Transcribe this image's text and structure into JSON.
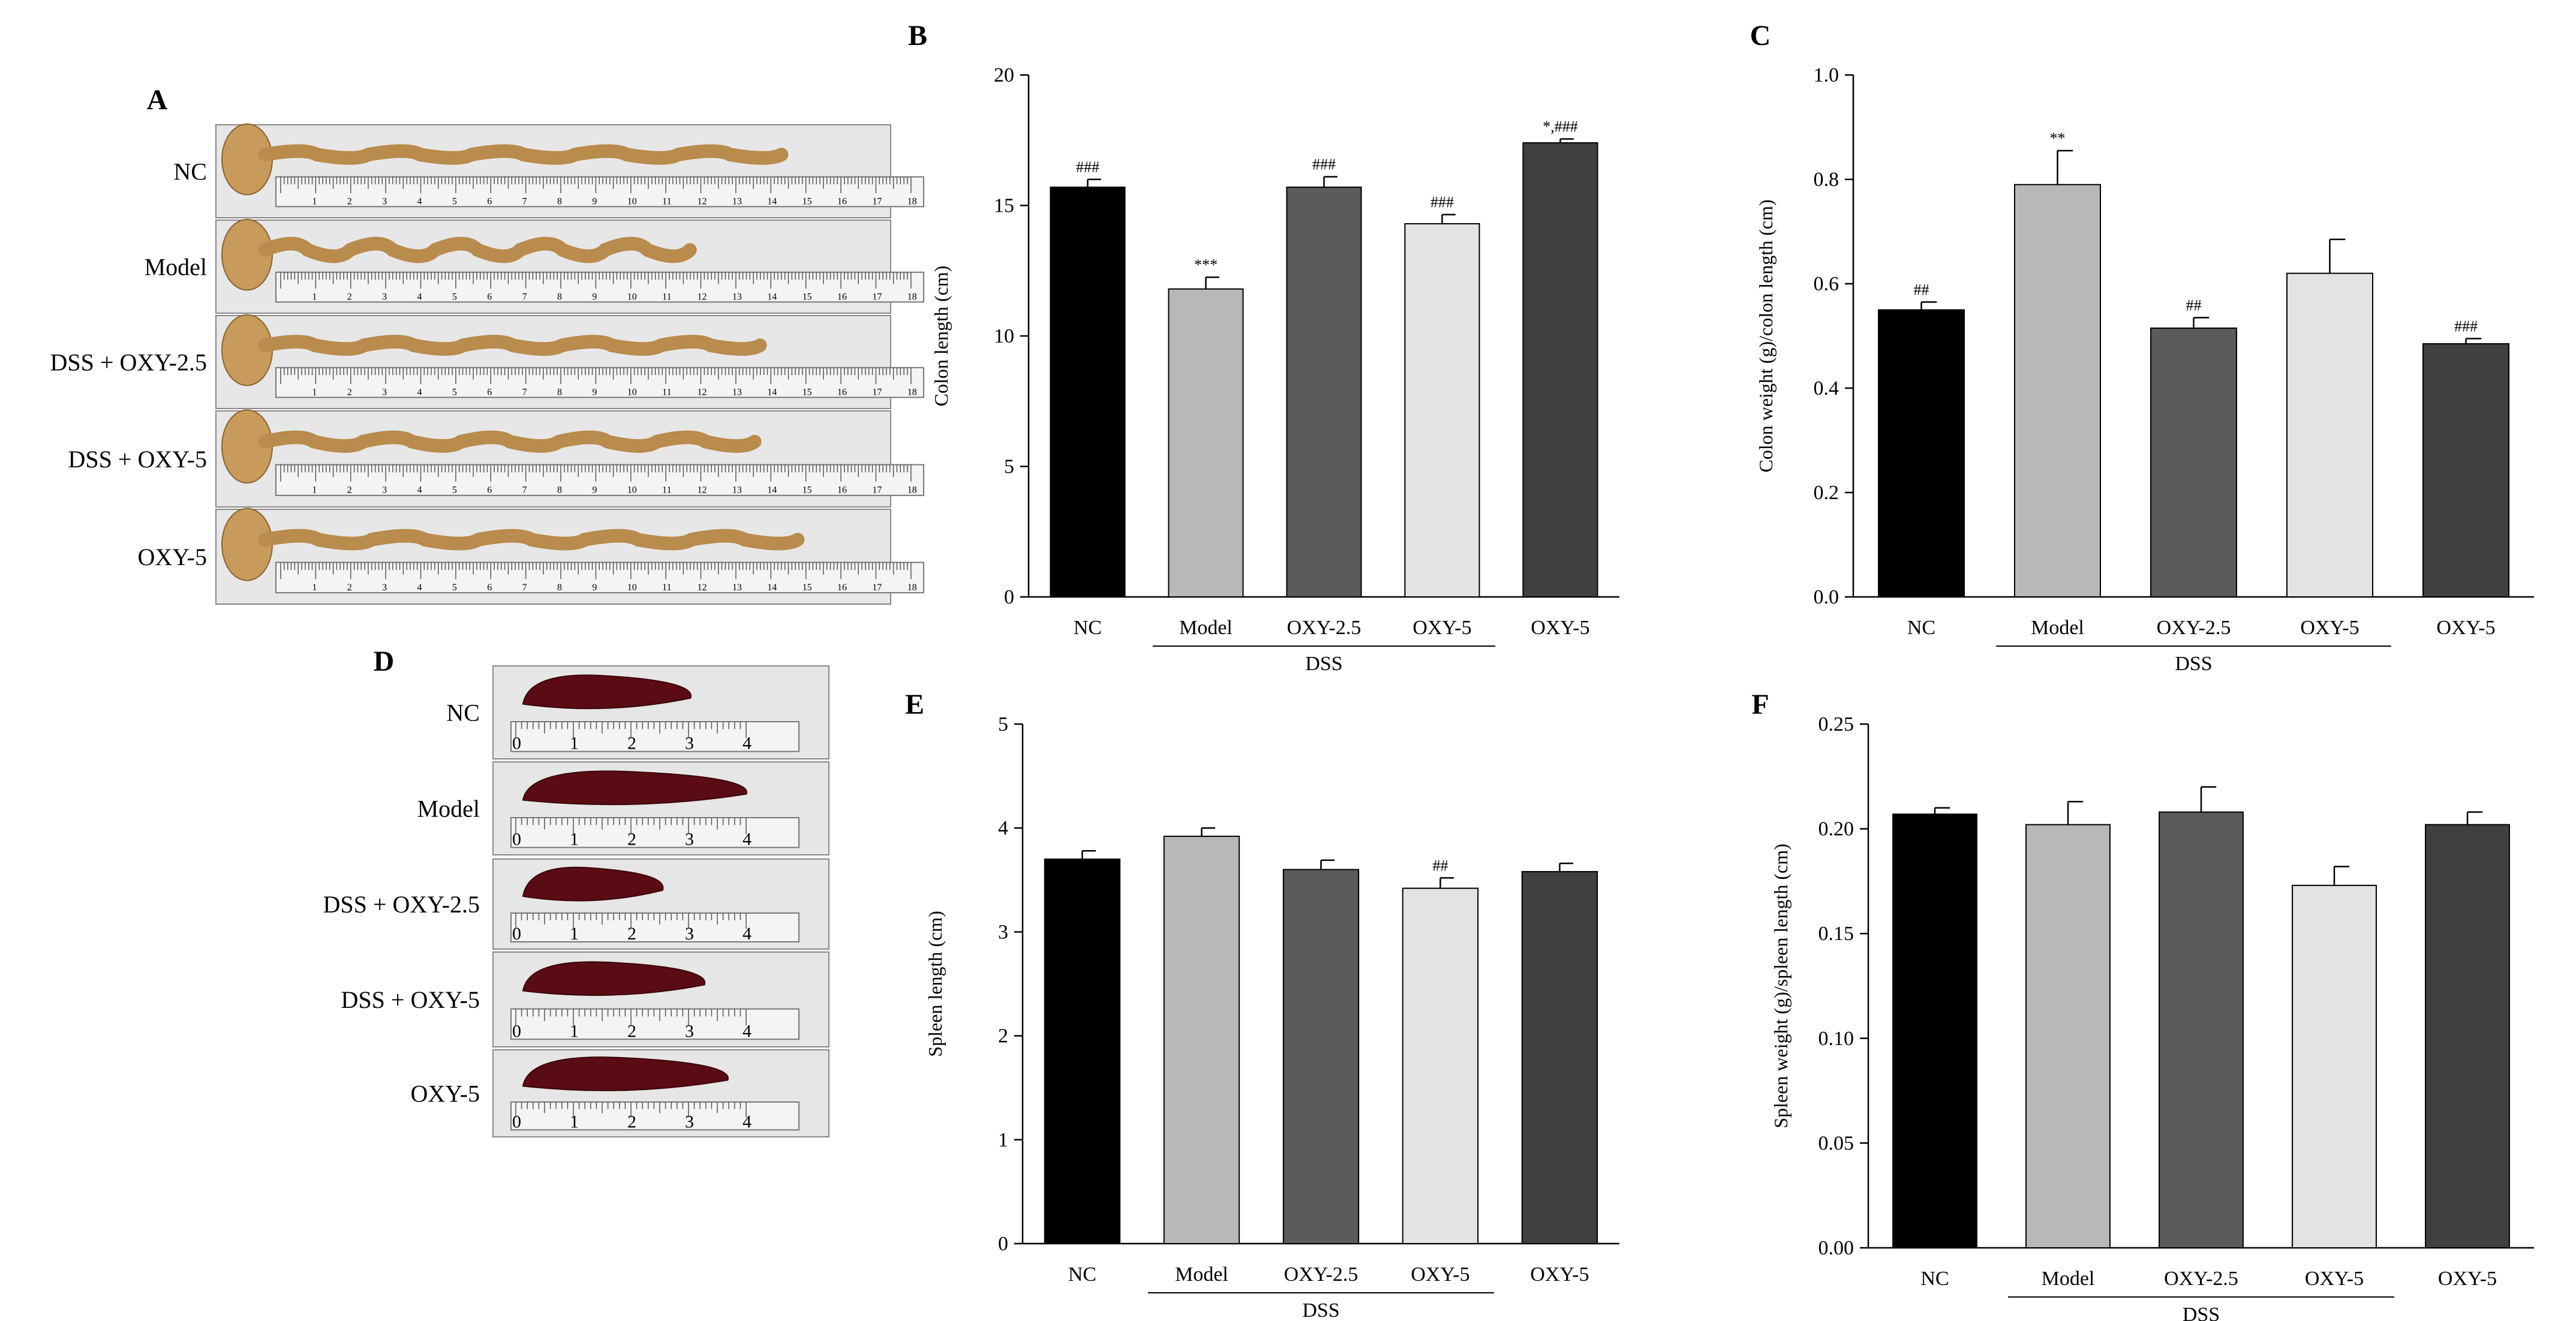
{
  "photo_panels": [
    {
      "letter": "A",
      "subject": "colon",
      "rows": [
        "NC",
        "Model",
        "DSS + OXY-2.5",
        "DSS + OXY-5",
        "OXY-5"
      ],
      "ruler_numbers": [
        "1",
        "2",
        "3",
        "4",
        "5",
        "6",
        "7",
        "8",
        "9",
        "10",
        "11",
        "12",
        "13",
        "14",
        "15",
        "16",
        "17",
        "18"
      ],
      "tissue_color": "#b98b4c",
      "background_color": "#e7e7e7"
    },
    {
      "letter": "D",
      "subject": "spleen",
      "rows": [
        "NC",
        "Model",
        "DSS + OXY-2.5",
        "DSS + OXY-5",
        "OXY-5"
      ],
      "ruler_numbers": [
        "0",
        "1",
        "2",
        "3",
        "4"
      ],
      "tissue_color": "#5a0b14",
      "background_color": "#e6e6e6"
    }
  ],
  "chart_data": [
    {
      "letter": "B",
      "type": "bar",
      "categories": [
        "NC",
        "Model",
        "OXY-2.5",
        "OXY-5",
        "OXY-5"
      ],
      "values": [
        15.7,
        11.8,
        15.7,
        14.3,
        17.4
      ],
      "errors": [
        0.3,
        0.45,
        0.4,
        0.35,
        0.15
      ],
      "annotations": [
        "###",
        "***",
        "###",
        "###",
        "*,###"
      ],
      "ylabel": "Colon length (cm)",
      "ylim": [
        0,
        20
      ],
      "yticks": [
        "0",
        "5",
        "10",
        "15",
        "20"
      ],
      "bar_colors": [
        "#000000",
        "#b8b8b8",
        "#5b5b5b",
        "#e3e3e3",
        "#404040"
      ],
      "group_label": "DSS",
      "group_span": [
        1,
        3
      ]
    },
    {
      "letter": "C",
      "type": "bar",
      "categories": [
        "NC",
        "Model",
        "OXY-2.5",
        "OXY-5",
        "OXY-5"
      ],
      "values": [
        0.55,
        0.79,
        0.515,
        0.62,
        0.485
      ],
      "errors": [
        0.015,
        0.065,
        0.02,
        0.065,
        0.01
      ],
      "annotations": [
        "##",
        "**",
        "##",
        "",
        "###"
      ],
      "ylabel": "Colon weight (g)/colon length (cm)",
      "ylim": [
        0,
        1.0
      ],
      "yticks": [
        "0.0",
        "0.2",
        "0.4",
        "0.6",
        "0.8",
        "1.0"
      ],
      "bar_colors": [
        "#000000",
        "#b8b8b8",
        "#5b5b5b",
        "#e3e3e3",
        "#404040"
      ],
      "group_label": "DSS",
      "group_span": [
        1,
        3
      ]
    },
    {
      "letter": "E",
      "type": "bar",
      "categories": [
        "NC",
        "Model",
        "OXY-2.5",
        "OXY-5",
        "OXY-5"
      ],
      "values": [
        3.7,
        3.92,
        3.6,
        3.42,
        3.58
      ],
      "errors": [
        0.08,
        0.08,
        0.09,
        0.1,
        0.08
      ],
      "annotations": [
        "",
        "",
        "",
        "##",
        ""
      ],
      "ylabel": "Spleen length (cm)",
      "ylim": [
        0,
        5
      ],
      "yticks": [
        "0",
        "1",
        "2",
        "3",
        "4",
        "5"
      ],
      "bar_colors": [
        "#000000",
        "#b8b8b8",
        "#5b5b5b",
        "#e3e3e3",
        "#404040"
      ],
      "group_label": "DSS",
      "group_span": [
        1,
        3
      ]
    },
    {
      "letter": "F",
      "type": "bar",
      "categories": [
        "NC",
        "Model",
        "OXY-2.5",
        "OXY-5",
        "OXY-5"
      ],
      "values": [
        0.207,
        0.202,
        0.208,
        0.173,
        0.202
      ],
      "errors": [
        0.003,
        0.011,
        0.012,
        0.009,
        0.006
      ],
      "annotations": [
        "",
        "",
        "",
        "",
        ""
      ],
      "ylabel": "Spleen weight (g)/spleen length (cm)",
      "ylim": [
        0,
        0.25
      ],
      "yticks": [
        "0.00",
        "0.05",
        "0.10",
        "0.15",
        "0.20",
        "0.25"
      ],
      "bar_colors": [
        "#000000",
        "#b8b8b8",
        "#5b5b5b",
        "#e3e3e3",
        "#404040"
      ],
      "group_label": "DSS",
      "group_span": [
        1,
        3
      ]
    }
  ]
}
